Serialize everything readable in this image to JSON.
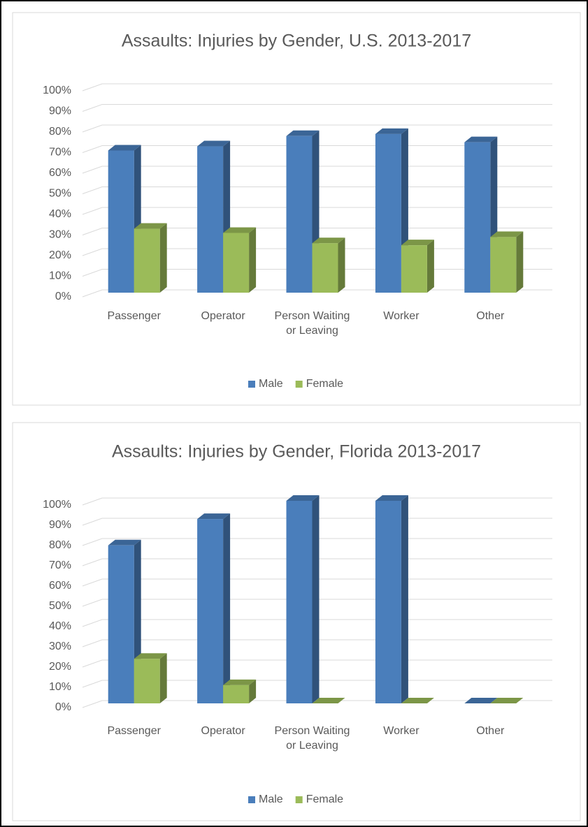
{
  "chart_data": [
    {
      "type": "bar3d",
      "title": "Assaults: Injuries by Gender, U.S. 2013-2017",
      "categories": [
        "Passenger",
        "Operator",
        "Person Waiting or Leaving",
        "Worker",
        "Other"
      ],
      "series": [
        {
          "name": "Male",
          "color": "#4a7ebb",
          "values": [
            69,
            71,
            76,
            77,
            73
          ]
        },
        {
          "name": "Female",
          "color": "#9bbb59",
          "values": [
            31,
            29,
            24,
            23,
            27
          ]
        }
      ],
      "ylim": [
        0,
        100
      ],
      "yticks": [
        {
          "value": 0,
          "label": "0%"
        },
        {
          "value": 10,
          "label": "10%"
        },
        {
          "value": 20,
          "label": "20%"
        },
        {
          "value": 30,
          "label": "30%"
        },
        {
          "value": 40,
          "label": "40%"
        },
        {
          "value": 50,
          "label": "50%"
        },
        {
          "value": 60,
          "label": "60%"
        },
        {
          "value": 70,
          "label": "70%"
        },
        {
          "value": 80,
          "label": "80%"
        },
        {
          "value": 90,
          "label": "90%"
        },
        {
          "value": 100,
          "label": "100%"
        }
      ],
      "grid": true,
      "legend": "bottom"
    },
    {
      "type": "bar3d",
      "title": "Assaults: Injuries by Gender, Florida 2013-2017",
      "categories": [
        "Passenger",
        "Operator",
        "Person Waiting or Leaving",
        "Worker",
        "Other"
      ],
      "series": [
        {
          "name": "Male",
          "color": "#4a7ebb",
          "values": [
            78,
            91,
            100,
            100,
            0
          ]
        },
        {
          "name": "Female",
          "color": "#9bbb59",
          "values": [
            22,
            9,
            0,
            0,
            0
          ]
        }
      ],
      "ylim": [
        0,
        100
      ],
      "yticks": [
        {
          "value": 0,
          "label": "0%"
        },
        {
          "value": 10,
          "label": "10%"
        },
        {
          "value": 20,
          "label": "20%"
        },
        {
          "value": 30,
          "label": "30%"
        },
        {
          "value": 40,
          "label": "40%"
        },
        {
          "value": 50,
          "label": "50%"
        },
        {
          "value": 60,
          "label": "60%"
        },
        {
          "value": 70,
          "label": "70%"
        },
        {
          "value": 80,
          "label": "80%"
        },
        {
          "value": 90,
          "label": "90%"
        },
        {
          "value": 100,
          "label": "100%"
        }
      ],
      "grid": true,
      "legend": "bottom"
    }
  ]
}
